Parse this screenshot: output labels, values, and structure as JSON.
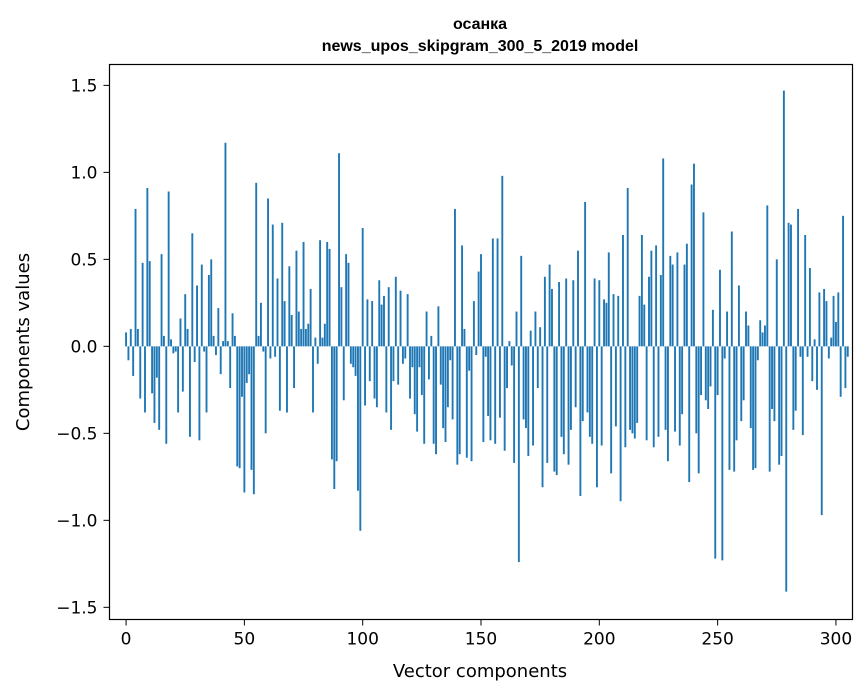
{
  "chart_data": {
    "type": "bar",
    "title": "осанка",
    "subtitle": "news_upos_skipgram_300_5_2019 model",
    "xlabel": "Vector components",
    "ylabel": "Components values",
    "xlim": [
      -7,
      307
    ],
    "ylim": [
      -1.57,
      1.62
    ],
    "xticks": [
      0,
      50,
      100,
      150,
      200,
      250,
      300
    ],
    "xtick_labels": [
      "0",
      "50",
      "100",
      "150",
      "200",
      "250",
      "300"
    ],
    "yticks": [
      -1.5,
      -1.0,
      -0.5,
      0.0,
      0.5,
      1.0,
      1.5
    ],
    "ytick_labels": [
      "−1.5",
      "−1.0",
      "−0.5",
      "0.0",
      "0.5",
      "1.0",
      "1.5"
    ],
    "bar_color": "#1f77b4",
    "series": [
      {
        "name": "components",
        "values": [
          0.08,
          -0.08,
          0.1,
          -0.17,
          0.79,
          0.1,
          -0.3,
          0.48,
          -0.38,
          0.91,
          0.49,
          -0.27,
          -0.44,
          -0.18,
          -0.48,
          0.53,
          0.06,
          -0.56,
          0.89,
          0.04,
          -0.04,
          -0.03,
          -0.38,
          0.16,
          -0.26,
          0.3,
          0.1,
          -0.52,
          0.65,
          -0.09,
          0.35,
          -0.54,
          0.47,
          -0.03,
          -0.38,
          0.41,
          0.5,
          0.06,
          -0.05,
          0.22,
          -0.16,
          0.03,
          1.17,
          0.03,
          -0.24,
          0.19,
          0.06,
          -0.69,
          -0.7,
          -0.29,
          -0.84,
          -0.21,
          -0.16,
          -0.71,
          -0.85,
          0.94,
          0.06,
          0.25,
          -0.03,
          -0.5,
          0.85,
          -0.07,
          0.7,
          -0.06,
          0.39,
          -0.37,
          0.71,
          0.26,
          -0.38,
          0.46,
          0.18,
          -0.24,
          0.55,
          0.2,
          0.1,
          0.6,
          0.1,
          0.13,
          0.33,
          -0.38,
          0.05,
          -0.1,
          0.61,
          0.05,
          0.13,
          0.6,
          0.56,
          -0.65,
          -0.82,
          -0.66,
          1.11,
          0.34,
          -0.31,
          0.53,
          0.48,
          -0.1,
          -0.12,
          -0.17,
          -0.83,
          -1.06,
          0.68,
          -0.34,
          0.27,
          -0.2,
          0.26,
          -0.3,
          -0.35,
          0.38,
          0.24,
          0.29,
          -0.38,
          0.34,
          -0.48,
          -0.2,
          0.4,
          -0.22,
          0.32,
          -0.1,
          -0.07,
          0.3,
          -0.3,
          -0.12,
          -0.39,
          -0.49,
          -0.12,
          -0.28,
          -0.56,
          0.2,
          -0.19,
          0.06,
          -0.56,
          -0.62,
          0.23,
          -0.22,
          -0.47,
          -0.55,
          -0.35,
          -0.08,
          -0.42,
          0.79,
          -0.68,
          -0.62,
          0.58,
          0.1,
          -0.64,
          -0.14,
          -0.66,
          0.26,
          -0.05,
          0.43,
          0.53,
          -0.55,
          -0.06,
          -0.4,
          -0.54,
          0.62,
          -0.56,
          0.62,
          -0.41,
          0.98,
          -0.6,
          -0.24,
          0.03,
          -0.11,
          -0.67,
          0.2,
          -1.24,
          0.52,
          -0.42,
          -0.47,
          -0.63,
          0.09,
          -0.57,
          0.2,
          -0.24,
          0.11,
          -0.81,
          0.4,
          -0.67,
          0.47,
          0.33,
          -0.72,
          -0.74,
          0.37,
          -0.52,
          -0.62,
          0.39,
          -0.68,
          -0.48,
          0.38,
          -0.35,
          0.55,
          -0.86,
          -0.43,
          0.83,
          -0.38,
          -0.52,
          -0.56,
          0.39,
          -0.81,
          0.38,
          -0.57,
          0.27,
          0.25,
          0.54,
          -0.73,
          0.3,
          -0.46,
          0.29,
          -0.89,
          0.64,
          -0.58,
          0.91,
          -0.48,
          -0.5,
          -0.53,
          -0.44,
          0.29,
          0.64,
          0.24,
          -0.54,
          0.4,
          0.55,
          -0.58,
          0.58,
          -0.52,
          0.41,
          1.08,
          -0.48,
          -0.66,
          0.52,
          0.47,
          -0.49,
          0.54,
          -0.57,
          -0.39,
          0.47,
          0.59,
          -0.78,
          0.93,
          1.05,
          -0.5,
          -0.73,
          -0.28,
          0.77,
          -0.31,
          -0.36,
          -0.23,
          0.21,
          -1.22,
          -0.28,
          0.44,
          -1.23,
          -0.07,
          0.2,
          -0.71,
          0.66,
          -0.72,
          -0.54,
          0.35,
          -0.43,
          -0.31,
          0.2,
          0.12,
          -0.47,
          -0.71,
          -0.7,
          -0.08,
          0.15,
          0.08,
          0.12,
          0.81,
          -0.72,
          -0.36,
          -0.43,
          0.5,
          -0.68,
          -0.63,
          1.47,
          -1.41,
          0.71,
          0.7,
          -0.48,
          -0.37,
          0.79,
          -0.06,
          -0.51,
          0.64,
          -0.06,
          0.45,
          -0.2,
          0.04,
          -0.25,
          0.31,
          -0.97,
          0.33,
          0.26,
          -0.07,
          0.05,
          0.29,
          0.14,
          0.31,
          -0.29,
          0.75,
          -0.24,
          -0.06
        ]
      }
    ]
  }
}
